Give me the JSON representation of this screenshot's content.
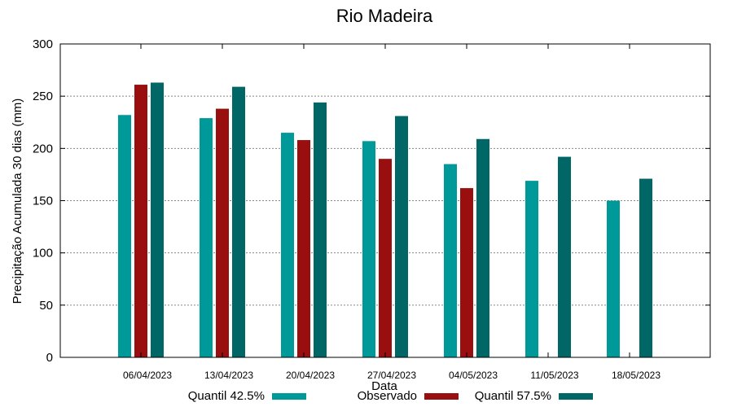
{
  "chart_data": {
    "type": "bar",
    "title": "Rio Madeira",
    "xlabel": "Data",
    "ylabel": "Precipitação Acumulada 30 dias (mm)",
    "ylim": [
      0,
      300
    ],
    "yticks": [
      0,
      50,
      100,
      150,
      200,
      250,
      300
    ],
    "grid": true,
    "legend_position": "bottom",
    "categories": [
      "06/04/2023",
      "13/04/2023",
      "20/04/2023",
      "27/04/2023",
      "04/05/2023",
      "11/05/2023",
      "18/05/2023"
    ],
    "series": [
      {
        "name": "Quantil 42.5%",
        "color": "#009999",
        "values": [
          232,
          229,
          215,
          207,
          185,
          169,
          150
        ]
      },
      {
        "name": "Observado",
        "color": "#990f0f",
        "values": [
          261,
          238,
          208,
          190,
          162,
          null,
          null
        ]
      },
      {
        "name": "Quantil 57.5%",
        "color": "#006666",
        "values": [
          263,
          259,
          244,
          231,
          209,
          192,
          171
        ]
      }
    ]
  }
}
